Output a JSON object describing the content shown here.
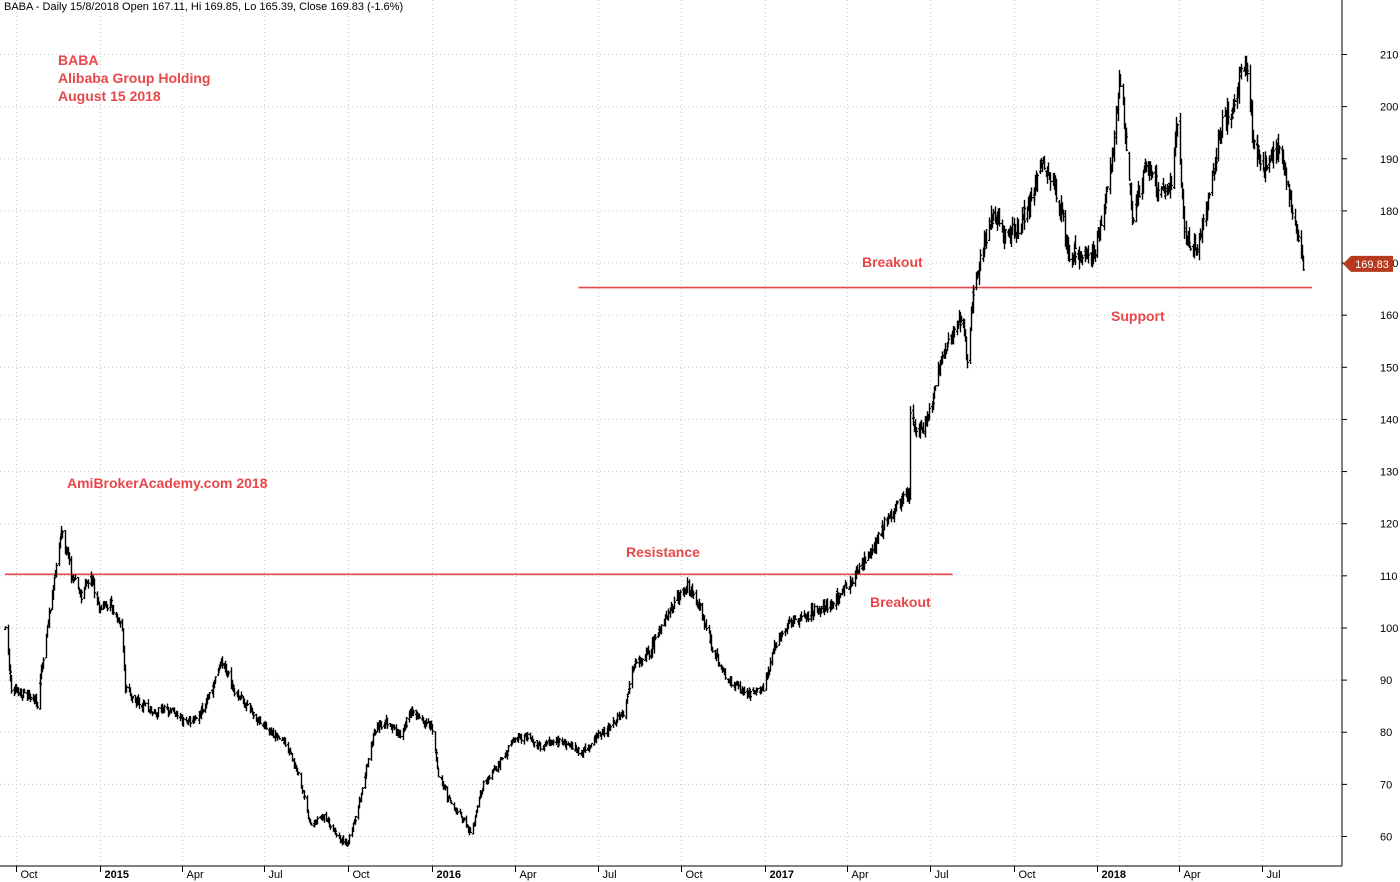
{
  "header": {
    "text": "BABA - Daily 15/8/2018 Open 167.11, Hi 169.85, Lo 165.39, Close 169.83 (-1.6%)"
  },
  "annotations": {
    "title_lines": [
      "BABA",
      "Alibaba Group Holding",
      "August 15 2018"
    ],
    "watermark": "AmiBrokerAcademy.com  2018",
    "resistance": "Resistance",
    "breakout_1": "Breakout",
    "breakout_2": "Breakout",
    "support": "Support"
  },
  "colors": {
    "line": "#e8474a",
    "price": "#000000",
    "grid": "#c8c8c8",
    "badge": "#b83a1e"
  },
  "chart_data": {
    "type": "ohlc",
    "ylim": [
      57,
      214
    ],
    "y_ticks": [
      60,
      70,
      80,
      90,
      100,
      110,
      120,
      130,
      140,
      150,
      160,
      170,
      180,
      190,
      200,
      210
    ],
    "x_ticks": [
      {
        "label": "Oct",
        "bold": false,
        "date": "2014-10-01"
      },
      {
        "label": "2015",
        "bold": true,
        "date": "2015-01-01"
      },
      {
        "label": "Apr",
        "bold": false,
        "date": "2015-04-01"
      },
      {
        "label": "Jul",
        "bold": false,
        "date": "2015-07-01"
      },
      {
        "label": "Oct",
        "bold": false,
        "date": "2015-10-01"
      },
      {
        "label": "2016",
        "bold": true,
        "date": "2016-01-01"
      },
      {
        "label": "Apr",
        "bold": false,
        "date": "2016-04-01"
      },
      {
        "label": "Jul",
        "bold": false,
        "date": "2016-07-01"
      },
      {
        "label": "Oct",
        "bold": false,
        "date": "2016-10-01"
      },
      {
        "label": "2017",
        "bold": true,
        "date": "2017-01-01"
      },
      {
        "label": "Apr",
        "bold": false,
        "date": "2017-04-01"
      },
      {
        "label": "Jul",
        "bold": false,
        "date": "2017-07-01"
      },
      {
        "label": "Oct",
        "bold": false,
        "date": "2017-10-01"
      },
      {
        "label": "2018",
        "bold": true,
        "date": "2018-01-01"
      },
      {
        "label": "Apr",
        "bold": false,
        "date": "2018-04-01"
      },
      {
        "label": "Jul",
        "bold": false,
        "date": "2018-07-01"
      }
    ],
    "last_close": 169.83,
    "last_close_label": "169.83",
    "horizontal_lines": [
      {
        "name": "resistance",
        "value": 110.3,
        "from": "2014-09-19",
        "to": "2017-07-26"
      },
      {
        "name": "support",
        "value": 165.3,
        "from": "2016-06-10",
        "to": "2018-08-25"
      }
    ],
    "prices": [
      [
        "2014-09-19",
        99.7
      ],
      [
        "2014-09-26",
        88.5
      ],
      [
        "2014-10-10",
        87.5
      ],
      [
        "2014-10-24",
        85.5
      ],
      [
        "2014-11-03",
        98.5
      ],
      [
        "2014-11-14",
        112.0
      ],
      [
        "2014-11-20",
        118.8
      ],
      [
        "2014-12-01",
        110.0
      ],
      [
        "2014-12-12",
        106.0
      ],
      [
        "2014-12-22",
        110.5
      ],
      [
        "2014-12-31",
        104.0
      ],
      [
        "2015-01-13",
        104.5
      ],
      [
        "2015-01-26",
        99.0
      ],
      [
        "2015-01-29",
        88.0
      ],
      [
        "2015-02-13",
        85.5
      ],
      [
        "2015-03-02",
        84.0
      ],
      [
        "2015-03-20",
        84.5
      ],
      [
        "2015-04-03",
        82.0
      ],
      [
        "2015-04-17",
        82.5
      ],
      [
        "2015-05-01",
        87.0
      ],
      [
        "2015-05-15",
        93.5
      ],
      [
        "2015-05-29",
        88.0
      ],
      [
        "2015-06-12",
        85.0
      ],
      [
        "2015-06-26",
        82.0
      ],
      [
        "2015-07-10",
        79.5
      ],
      [
        "2015-07-24",
        78.0
      ],
      [
        "2015-08-07",
        72.0
      ],
      [
        "2015-08-21",
        62.0
      ],
      [
        "2015-09-04",
        64.0
      ],
      [
        "2015-09-18",
        60.0
      ],
      [
        "2015-09-30",
        58.5
      ],
      [
        "2015-10-15",
        68.0
      ],
      [
        "2015-10-29",
        80.0
      ],
      [
        "2015-11-12",
        82.0
      ],
      [
        "2015-11-26",
        79.5
      ],
      [
        "2015-12-10",
        84.0
      ],
      [
        "2015-12-24",
        82.0
      ],
      [
        "2015-12-31",
        81.5
      ],
      [
        "2016-01-08",
        72.0
      ],
      [
        "2016-01-22",
        66.0
      ],
      [
        "2016-02-05",
        63.0
      ],
      [
        "2016-02-12",
        60.5
      ],
      [
        "2016-02-26",
        70.0
      ],
      [
        "2016-03-11",
        73.0
      ],
      [
        "2016-03-31",
        78.5
      ],
      [
        "2016-04-15",
        79.0
      ],
      [
        "2016-04-29",
        77.0
      ],
      [
        "2016-05-13",
        78.5
      ],
      [
        "2016-05-31",
        77.5
      ],
      [
        "2016-06-14",
        76.0
      ],
      [
        "2016-06-30",
        79.0
      ],
      [
        "2016-07-15",
        81.5
      ],
      [
        "2016-07-29",
        83.5
      ],
      [
        "2016-08-11",
        93.5
      ],
      [
        "2016-08-26",
        95.0
      ],
      [
        "2016-09-09",
        101.0
      ],
      [
        "2016-09-23",
        105.0
      ],
      [
        "2016-10-07",
        108.0
      ],
      [
        "2016-10-21",
        104.0
      ],
      [
        "2016-11-04",
        96.0
      ],
      [
        "2016-11-18",
        91.0
      ],
      [
        "2016-12-02",
        88.5
      ],
      [
        "2016-12-16",
        87.5
      ],
      [
        "2016-12-30",
        88.0
      ],
      [
        "2017-01-10",
        96.0
      ],
      [
        "2017-01-24",
        100.5
      ],
      [
        "2017-02-07",
        101.5
      ],
      [
        "2017-02-21",
        103.0
      ],
      [
        "2017-03-07",
        104.0
      ],
      [
        "2017-03-21",
        106.0
      ],
      [
        "2017-04-04",
        108.5
      ],
      [
        "2017-04-18",
        112.0
      ],
      [
        "2017-05-02",
        116.0
      ],
      [
        "2017-05-16",
        121.5
      ],
      [
        "2017-05-31",
        124.0
      ],
      [
        "2017-06-08",
        126.0
      ],
      [
        "2017-06-09",
        142.0
      ],
      [
        "2017-06-16",
        136.5
      ],
      [
        "2017-06-30",
        141.0
      ],
      [
        "2017-07-14",
        152.5
      ],
      [
        "2017-07-28",
        157.0
      ],
      [
        "2017-08-04",
        159.5
      ],
      [
        "2017-08-11",
        152.0
      ],
      [
        "2017-08-18",
        165.5
      ],
      [
        "2017-08-25",
        171.0
      ],
      [
        "2017-09-08",
        179.0
      ],
      [
        "2017-09-22",
        175.0
      ],
      [
        "2017-10-06",
        177.0
      ],
      [
        "2017-10-20",
        182.0
      ],
      [
        "2017-11-03",
        189.5
      ],
      [
        "2017-11-17",
        184.0
      ],
      [
        "2017-12-01",
        172.0
      ],
      [
        "2017-12-15",
        171.5
      ],
      [
        "2017-12-29",
        172.5
      ],
      [
        "2018-01-12",
        183.0
      ],
      [
        "2018-01-26",
        205.0
      ],
      [
        "2018-02-09",
        178.0
      ],
      [
        "2018-02-23",
        189.0
      ],
      [
        "2018-03-09",
        184.0
      ],
      [
        "2018-03-23",
        185.5
      ],
      [
        "2018-03-30",
        198.0
      ],
      [
        "2018-04-06",
        175.0
      ],
      [
        "2018-04-20",
        172.0
      ],
      [
        "2018-05-04",
        183.0
      ],
      [
        "2018-05-18",
        197.0
      ],
      [
        "2018-06-01",
        200.0
      ],
      [
        "2018-06-08",
        208.0
      ],
      [
        "2018-06-15",
        207.5
      ],
      [
        "2018-06-22",
        192.0
      ],
      [
        "2018-07-06",
        188.5
      ],
      [
        "2018-07-20",
        193.0
      ],
      [
        "2018-08-03",
        180.5
      ],
      [
        "2018-08-10",
        175.0
      ],
      [
        "2018-08-15",
        169.83
      ]
    ]
  }
}
